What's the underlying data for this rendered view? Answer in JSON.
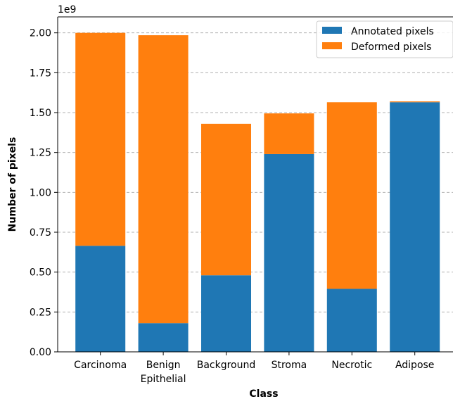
{
  "chart_data": {
    "type": "bar",
    "stacked": true,
    "categories": [
      "Carcinoma",
      "Benign\nEpithelial",
      "Background",
      "Stroma",
      "Necrotic",
      "Adipose"
    ],
    "series": [
      {
        "name": "Annotated pixels",
        "color": "#1f77b4",
        "values": [
          0.665,
          0.18,
          0.48,
          1.24,
          0.395,
          1.565
        ]
      },
      {
        "name": "Deformed pixels",
        "color": "#ff7f0e",
        "values": [
          1.335,
          1.805,
          0.95,
          0.255,
          1.17,
          0.005
        ]
      }
    ],
    "xlabel": "Class",
    "ylabel": "Number of pixels",
    "y_offset_label": "1e9",
    "ylim": [
      0,
      2.1
    ],
    "yticks": [
      "0.00",
      "0.25",
      "0.50",
      "0.75",
      "1.00",
      "1.25",
      "1.50",
      "1.75",
      "2.00"
    ],
    "grid": "horizontal-dashed",
    "legend_position": "top-right"
  }
}
